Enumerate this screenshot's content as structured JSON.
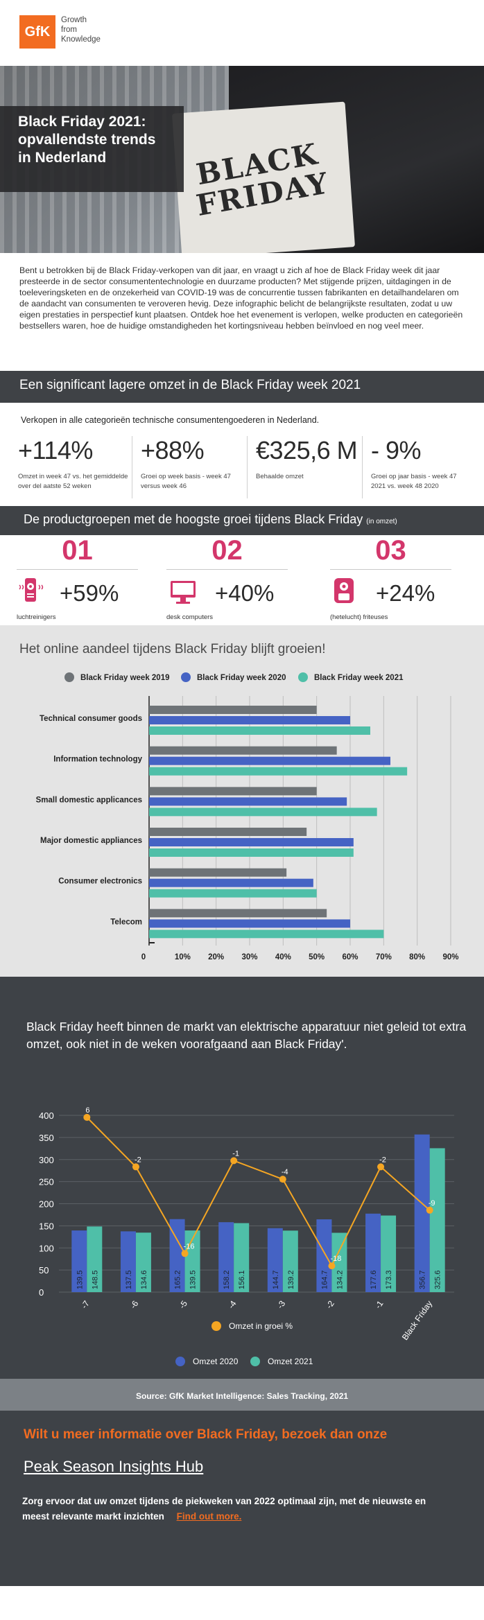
{
  "header": {
    "logo": "GfK",
    "tagline": "Growth\nfrom\nKnowledge"
  },
  "hero": {
    "title_lines": [
      "Black Friday 2021:",
      "opvallendste trends",
      "in Nederland"
    ],
    "bag_text": "BLACK FRIDAY"
  },
  "intro": "Bent u betrokken bij de Black Friday-verkopen van dit jaar, en vraagt u zich af hoe de Black Friday week dit jaar presteerde in de sector consumententechnologie en duurzame producten? Met stijgende prijzen, uitdagingen in de toeleveringsketen en de onzekerheid van COVID-19 was de concurrentie tussen fabrikanten en detailhandelaren om de aandacht van consumenten te veroveren hevig. Deze infographic belicht de belangrijkste resultaten, zodat u uw eigen prestaties in perspectief kunt plaatsen. Ontdek hoe het evenement is verlopen, welke producten en categorieën bestsellers waren, hoe de huidige omstandigheden het kortingsniveau hebben beïnvloed en nog veel meer.",
  "section1": {
    "title": "Een significant lagere omzet in de Black Friday week 2021",
    "subtitle": "Verkopen in alle categorieën technische consumentengoederen in Nederland.",
    "stats": [
      {
        "big": "+114%",
        "small": "Omzet in week 47 vs. het gemiddelde over del aatste 52 weken"
      },
      {
        "big": "+88%",
        "small": "Groei op week basis - week 47 versus week 46"
      },
      {
        "big": "€325,6 M",
        "small": "Behaalde omzet"
      },
      {
        "big": "- 9%",
        "small": "Groei op jaar basis -  week 47 2021 vs. week 48 2020"
      }
    ]
  },
  "section2": {
    "title": "De productgroepen met de hoogste groei tijdens Black Friday",
    "title_small": "(in omzet)",
    "groups": [
      {
        "num": "01",
        "pct": "+59%",
        "label": "luchtreinigers",
        "icon": "air-purifier-icon"
      },
      {
        "num": "02",
        "pct": "+40%",
        "label": "desk computers",
        "icon": "desktop-computer-icon"
      },
      {
        "num": "03",
        "pct": "+24%",
        "label": "(hetelucht) friteuses",
        "icon": "air-fryer-icon"
      }
    ],
    "accent": "#d3366b"
  },
  "online": {
    "title": "Het online aandeel tijdens Black Friday blijft groeien!"
  },
  "combo": {
    "title": "Black Friday heeft binnen de markt van elektrische apparatuur niet geleid tot extra omzet, ook niet in de weken voorafgaand aan Black Friday'."
  },
  "source": "Source: GfK Market Intelligence: Sales Tracking, 2021",
  "footer": {
    "cta": "Wilt u meer informatie over  Black Friday, bezoek dan onze",
    "hub": "Peak Season Insights Hub",
    "desc": "Zorg ervoor dat uw omzet tijdens de piekweken van 2022 optimaal zijn, met de nieuwste en meest relevante markt inzichten",
    "link": "Find out more."
  },
  "chart_data": [
    {
      "type": "bar",
      "orientation": "horizontal",
      "categories": [
        "Technical consumer goods",
        "Information technology",
        "Small domestic applicances",
        "Major domestic appliances",
        "Consumer electronics",
        "Telecom"
      ],
      "series": [
        {
          "name": "Black Friday week 2019",
          "color": "#6e7377",
          "values": [
            50,
            56,
            50,
            47,
            41,
            53
          ]
        },
        {
          "name": "Black Friday week 2020",
          "color": "#4563c4",
          "values": [
            60,
            72,
            59,
            61,
            49,
            60
          ]
        },
        {
          "name": "Black Friday week 2021",
          "color": "#4fbfa8",
          "values": [
            66,
            77,
            68,
            61,
            50,
            70
          ]
        }
      ],
      "tick_labels": [
        "0",
        "10%",
        "20%",
        "30%",
        "40%",
        "50%",
        "60%",
        "70%",
        "80%",
        "90%"
      ],
      "xlim": [
        0,
        90
      ],
      "grid": true,
      "legend": "top"
    },
    {
      "type": "bar",
      "categories": [
        "-7",
        "-6",
        "-5",
        "-4",
        "-3",
        "-2",
        "-1",
        "Black Friday"
      ],
      "series": [
        {
          "name": "Omzet 2020",
          "color": "#4563c4",
          "values": [
            139.5,
            137.5,
            165.2,
            158.2,
            144.7,
            164.7,
            177.6,
            356.7
          ]
        },
        {
          "name": "Omzet 2021",
          "color": "#4fbfa8",
          "values": [
            148.5,
            134.6,
            139.5,
            156.1,
            139.2,
            134.2,
            173.3,
            325.6
          ]
        }
      ],
      "line_series": {
        "name": "Omzet in groei %",
        "color": "#f5a623",
        "values": [
          6,
          -2,
          -16,
          -1,
          -4,
          -18,
          -2,
          -9
        ],
        "labels": [
          "6",
          "-2",
          "-16",
          "-1",
          "-4",
          "-18",
          "-2",
          "-9"
        ]
      },
      "y_ticks": [
        0,
        50,
        100,
        150,
        200,
        250,
        300,
        350,
        400
      ],
      "ylim": [
        0,
        400
      ],
      "legend": "bottom"
    }
  ]
}
